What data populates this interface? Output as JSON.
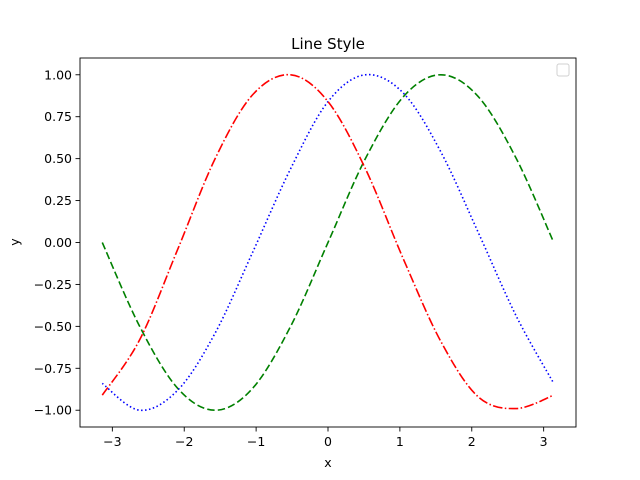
{
  "chart_data": {
    "type": "line",
    "title": "Line Style",
    "xlabel": "x",
    "ylabel": "y",
    "xlim": [
      -3.45,
      3.45
    ],
    "ylim": [
      -1.1,
      1.1
    ],
    "xticks": [
      -3,
      -2,
      -1,
      0,
      1,
      2,
      3
    ],
    "xtick_labels": [
      "−3",
      "−2",
      "−1",
      "0",
      "1",
      "2",
      "3"
    ],
    "yticks": [
      -1.0,
      -0.75,
      -0.5,
      -0.25,
      0.0,
      0.25,
      0.5,
      0.75,
      1.0
    ],
    "ytick_labels": [
      "−1.00",
      "−0.75",
      "−0.50",
      "−0.25",
      "0.00",
      "0.25",
      "0.50",
      "0.75",
      "1.00"
    ],
    "grid": false,
    "legend": {
      "location": "upper right",
      "entries": []
    },
    "x_range": [
      -3.14159,
      3.14159
    ],
    "series": [
      {
        "style": "dashed",
        "color": "#008000",
        "x": [
          -3.14,
          -2.62,
          -2.09,
          -1.57,
          -1.05,
          -0.52,
          0.0,
          0.52,
          1.05,
          1.57,
          2.09,
          2.62,
          3.14
        ],
        "y": [
          0.0,
          -0.5,
          -0.87,
          -1.0,
          -0.87,
          -0.5,
          0.0,
          0.5,
          0.87,
          1.0,
          0.87,
          0.5,
          0.0
        ]
      },
      {
        "style": "dotted",
        "color": "#0000ff",
        "x": [
          -3.14,
          -2.62,
          -2.09,
          -1.57,
          -1.05,
          -0.52,
          0.0,
          0.52,
          1.05,
          1.57,
          2.09,
          2.62,
          3.14
        ],
        "y": [
          -0.84,
          -1.0,
          -0.88,
          -0.54,
          -0.06,
          0.44,
          0.84,
          1.0,
          0.89,
          0.54,
          0.06,
          -0.44,
          -0.84
        ]
      },
      {
        "style": "dashdot",
        "color": "#ff0000",
        "x": [
          -3.14,
          -2.62,
          -2.09,
          -1.57,
          -1.05,
          -0.52,
          0.0,
          0.52,
          1.05,
          1.57,
          2.09,
          2.62,
          3.14
        ],
        "y": [
          -0.91,
          -0.58,
          -0.04,
          0.5,
          0.88,
          1.0,
          0.84,
          0.44,
          -0.1,
          -0.59,
          -0.92,
          -0.99,
          -0.91
        ]
      }
    ]
  }
}
